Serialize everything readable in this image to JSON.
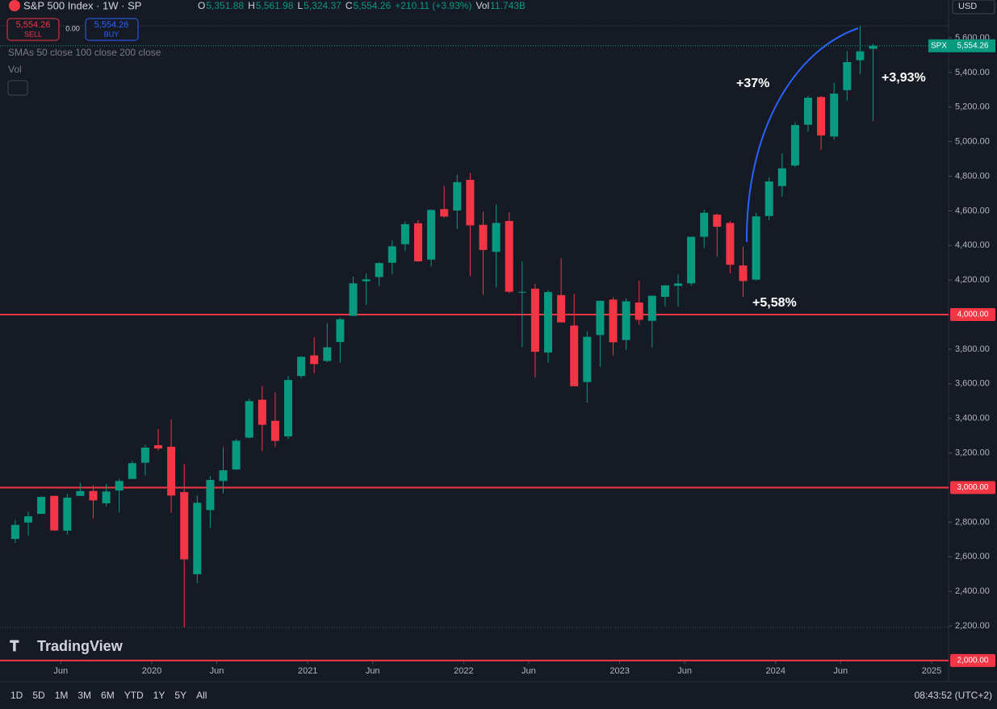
{
  "header": {
    "title": "S&P 500 Index · 1W · SP",
    "ohlc": [
      {
        "label": "O",
        "value": "5,351.88"
      },
      {
        "label": "H",
        "value": "5,561.98"
      },
      {
        "label": "L",
        "value": "5,324.37"
      },
      {
        "label": "C",
        "value": "5,554.26"
      }
    ],
    "change": "+210.11 (+3.93%)",
    "vol_label": "Vol",
    "vol_value": "11.743B",
    "sell_price": "5,554.26",
    "sell_label": "SELL",
    "spread": "0.00",
    "buy_price": "5,554.26",
    "buy_label": "BUY",
    "indicator": "SMAs 50 close 100 close 200 close",
    "vol_indicator": "Vol",
    "currency": "USD",
    "logo": "TradingView"
  },
  "toolbar": {
    "ranges": [
      "1D",
      "5D",
      "1M",
      "3M",
      "6M",
      "YTD",
      "1Y",
      "5Y",
      "All"
    ],
    "clock": "08:43:52 (UTC+2)"
  },
  "chart_data": {
    "type": "candlestick",
    "up_color": "#089981",
    "down_color": "#f23645",
    "x": [
      "2019-02",
      "2019-03",
      "2019-04",
      "2019-05",
      "2019-06",
      "2019-07",
      "2019-08",
      "2019-09",
      "2019-10",
      "2019-11",
      "2019-12",
      "2020-01",
      "2020-02",
      "2020-03",
      "2020-04",
      "2020-05",
      "2020-06",
      "2020-07",
      "2020-08",
      "2020-09",
      "2020-10",
      "2020-11",
      "2020-12",
      "2021-01",
      "2021-02",
      "2021-03",
      "2021-04",
      "2021-05",
      "2021-06",
      "2021-07",
      "2021-08",
      "2021-09",
      "2021-10",
      "2021-11",
      "2021-12",
      "2022-01",
      "2022-02",
      "2022-03",
      "2022-04",
      "2022-05",
      "2022-06",
      "2022-07",
      "2022-08",
      "2022-09",
      "2022-10",
      "2022-11",
      "2022-12",
      "2023-01",
      "2023-02",
      "2023-03",
      "2023-04",
      "2023-05",
      "2023-06",
      "2023-07",
      "2023-08",
      "2023-09",
      "2023-10",
      "2023-11",
      "2023-12",
      "2024-01",
      "2024-02",
      "2024-03",
      "2024-04",
      "2024-05",
      "2024-06",
      "2024-07",
      "2024-08"
    ],
    "ohlc": [
      [
        2703,
        2813,
        2681,
        2784
      ],
      [
        2798,
        2860,
        2722,
        2834
      ],
      [
        2848,
        2949,
        2848,
        2946
      ],
      [
        2952,
        2954,
        2750,
        2752
      ],
      [
        2751,
        2964,
        2728,
        2942
      ],
      [
        2952,
        3028,
        2952,
        2980
      ],
      [
        2980,
        3014,
        2822,
        2926
      ],
      [
        2909,
        3022,
        2892,
        2977
      ],
      [
        2983,
        3050,
        2856,
        3038
      ],
      [
        3050,
        3154,
        3050,
        3141
      ],
      [
        3144,
        3248,
        3070,
        3231
      ],
      [
        3245,
        3338,
        3214,
        3226
      ],
      [
        3236,
        3393,
        2855,
        2954
      ],
      [
        2974,
        3137,
        2192,
        2585
      ],
      [
        2499,
        2955,
        2447,
        2912
      ],
      [
        2870,
        3068,
        2767,
        3044
      ],
      [
        3038,
        3233,
        2966,
        3100
      ],
      [
        3105,
        3280,
        3101,
        3271
      ],
      [
        3289,
        3514,
        3284,
        3500
      ],
      [
        3508,
        3588,
        3210,
        3363
      ],
      [
        3386,
        3550,
        3234,
        3270
      ],
      [
        3296,
        3646,
        3280,
        3622
      ],
      [
        3645,
        3760,
        3633,
        3756
      ],
      [
        3764,
        3870,
        3662,
        3714
      ],
      [
        3732,
        3950,
        3725,
        3811
      ],
      [
        3842,
        3982,
        3723,
        3973
      ],
      [
        3993,
        4219,
        3992,
        4181
      ],
      [
        4193,
        4238,
        4056,
        4204
      ],
      [
        4217,
        4302,
        4165,
        4298
      ],
      [
        4300,
        4429,
        4233,
        4395
      ],
      [
        4407,
        4538,
        4367,
        4523
      ],
      [
        4528,
        4546,
        4306,
        4308
      ],
      [
        4318,
        4609,
        4278,
        4605
      ],
      [
        4610,
        4744,
        4560,
        4567
      ],
      [
        4602,
        4809,
        4495,
        4766
      ],
      [
        4779,
        4819,
        4223,
        4516
      ],
      [
        4519,
        4595,
        4115,
        4374
      ],
      [
        4363,
        4637,
        4157,
        4530
      ],
      [
        4541,
        4593,
        4124,
        4132
      ],
      [
        4131,
        4307,
        3811,
        4132
      ],
      [
        4150,
        4178,
        3637,
        3785
      ],
      [
        3781,
        4140,
        3722,
        4130
      ],
      [
        4113,
        4325,
        3955,
        3955
      ],
      [
        3937,
        4120,
        3585,
        3586
      ],
      [
        3610,
        3905,
        3491,
        3872
      ],
      [
        3882,
        4081,
        3699,
        4080
      ],
      [
        4087,
        4101,
        3765,
        3840
      ],
      [
        3853,
        4095,
        3795,
        4077
      ],
      [
        4070,
        4195,
        3943,
        3970
      ],
      [
        3964,
        4110,
        3809,
        4109
      ],
      [
        4103,
        4170,
        4049,
        4169
      ],
      [
        4166,
        4231,
        4048,
        4180
      ],
      [
        4181,
        4449,
        4166,
        4450
      ],
      [
        4450,
        4607,
        4385,
        4589
      ],
      [
        4578,
        4584,
        4335,
        4508
      ],
      [
        4530,
        4541,
        4238,
        4288
      ],
      [
        4284,
        4393,
        4104,
        4194
      ],
      [
        4202,
        4588,
        4197,
        4568
      ],
      [
        4570,
        4794,
        4546,
        4770
      ],
      [
        4743,
        4932,
        4683,
        4846
      ],
      [
        4862,
        5112,
        4853,
        5096
      ],
      [
        5098,
        5265,
        5057,
        5254
      ],
      [
        5258,
        5264,
        4953,
        5036
      ],
      [
        5030,
        5342,
        5012,
        5278
      ],
      [
        5298,
        5524,
        5235,
        5460
      ],
      [
        5471,
        5670,
        5390,
        5522
      ],
      [
        5537,
        5566,
        5120,
        5554
      ]
    ],
    "ylim": [
      1995,
      5819
    ],
    "yticks": [
      {
        "value": 2200,
        "label": "2,200.00"
      },
      {
        "value": 2400,
        "label": "2,400.00"
      },
      {
        "value": 2600,
        "label": "2,600.00"
      },
      {
        "value": 2800,
        "label": "2,800.00"
      },
      {
        "value": 3200,
        "label": "3,200.00"
      },
      {
        "value": 3400,
        "label": "3,400.00"
      },
      {
        "value": 3600,
        "label": "3,600.00"
      },
      {
        "value": 3800,
        "label": "3,800.00"
      },
      {
        "value": 4200,
        "label": "4,200.00"
      },
      {
        "value": 4400,
        "label": "4,400.00"
      },
      {
        "value": 4600,
        "label": "4,600.00"
      },
      {
        "value": 4800,
        "label": "4,800.00"
      },
      {
        "value": 5000,
        "label": "5,000.00"
      },
      {
        "value": 5200,
        "label": "5,200.00"
      },
      {
        "value": 5400,
        "label": "5,400.00"
      },
      {
        "value": 5600,
        "label": "5,600.00"
      }
    ],
    "xticks": [
      {
        "value": "2019-06",
        "label": "Jun"
      },
      {
        "value": "2020-01",
        "label": "2020"
      },
      {
        "value": "2020-06",
        "label": "Jun"
      },
      {
        "value": "2021-01",
        "label": "2021"
      },
      {
        "value": "2021-06",
        "label": "Jun"
      },
      {
        "value": "2022-01",
        "label": "2022"
      },
      {
        "value": "2022-06",
        "label": "Jun"
      },
      {
        "value": "2023-01",
        "label": "2023"
      },
      {
        "value": "2023-06",
        "label": "Jun"
      },
      {
        "value": "2024-01",
        "label": "2024"
      },
      {
        "value": "2024-06",
        "label": "Jun"
      },
      {
        "value": "2025-01",
        "label": "2025"
      }
    ],
    "levels": [
      {
        "value": 4000,
        "label": "4,000.00"
      },
      {
        "value": 3000,
        "label": "3,000.00"
      },
      {
        "value": 2000,
        "label": "2,000.00"
      }
    ],
    "level_color": "#f23645",
    "last": {
      "name": "SPX",
      "value": 5554.26,
      "label": "5,554.26"
    },
    "annotations": [
      "+37%",
      "+3,93%",
      "+5,58%"
    ]
  }
}
